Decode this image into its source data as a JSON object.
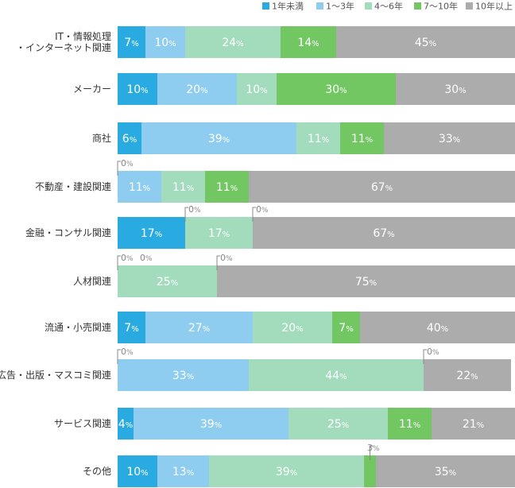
{
  "chart_data": {
    "type": "bar",
    "orientation": "horizontal",
    "stacked": true,
    "percent_stacked": true,
    "unit": "%",
    "legend_position": "top-right",
    "grid": false,
    "xlim": [
      0,
      100
    ],
    "categories": [
      "IT・情報処理\n・インターネット関連",
      "メーカー",
      "商社",
      "不動産・建設関連",
      "金融・コンサル関連",
      "人材関連",
      "流通・小売関連",
      "広告・出版・マスコミ関連",
      "サービス関連",
      "その他"
    ],
    "series": [
      {
        "name": "1年未満",
        "color": "#29abe2",
        "values": [
          7,
          10,
          6,
          0,
          17,
          0,
          7,
          0,
          4,
          10
        ]
      },
      {
        "name": "1〜3年",
        "color": "#8ecdf0",
        "values": [
          10,
          20,
          39,
          11,
          0,
          0,
          27,
          33,
          39,
          13
        ]
      },
      {
        "name": "4〜6年",
        "color": "#a3dcbc",
        "values": [
          24,
          10,
          11,
          11,
          17,
          25,
          20,
          44,
          25,
          39
        ]
      },
      {
        "name": "7〜10年",
        "color": "#72c763",
        "values": [
          14,
          30,
          11,
          11,
          0,
          0,
          7,
          0,
          11,
          3
        ]
      },
      {
        "name": "10年以上",
        "color": "#acacac",
        "values": [
          45,
          30,
          33,
          67,
          67,
          75,
          40,
          22,
          21,
          35
        ]
      }
    ]
  }
}
